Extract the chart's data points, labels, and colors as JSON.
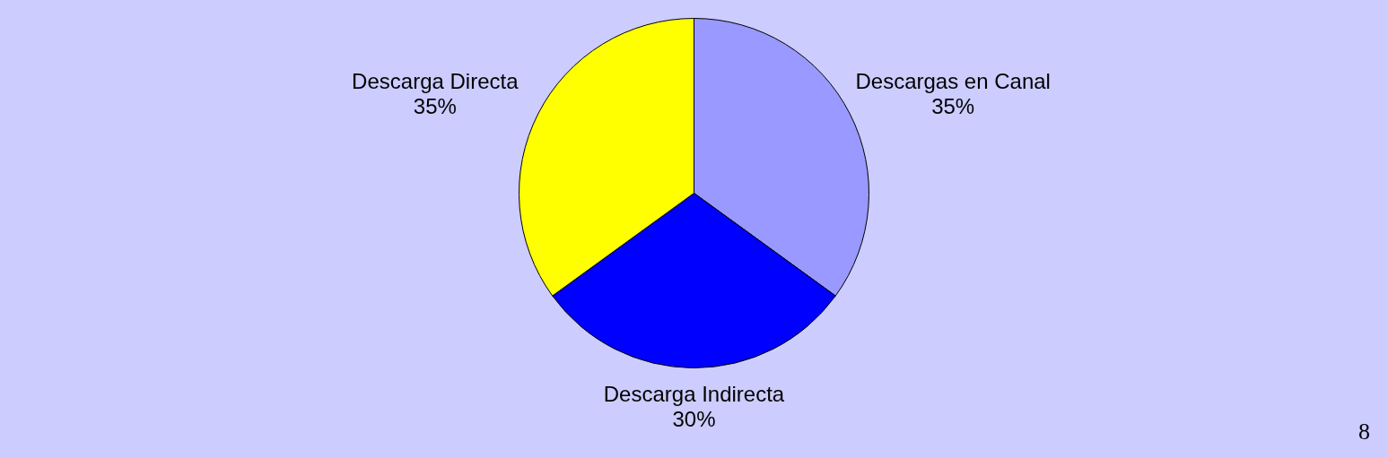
{
  "chart_data": {
    "type": "pie",
    "categories": [
      "Descargas en Canal",
      "Descarga Indirecta",
      "Descarga Directa"
    ],
    "values": [
      35,
      30,
      35
    ],
    "colors": [
      "#9999ff",
      "#0000ff",
      "#ffff00"
    ],
    "value_labels": [
      "35%",
      "30%",
      "35%"
    ],
    "legend": false,
    "annotations": [
      "8"
    ]
  }
}
